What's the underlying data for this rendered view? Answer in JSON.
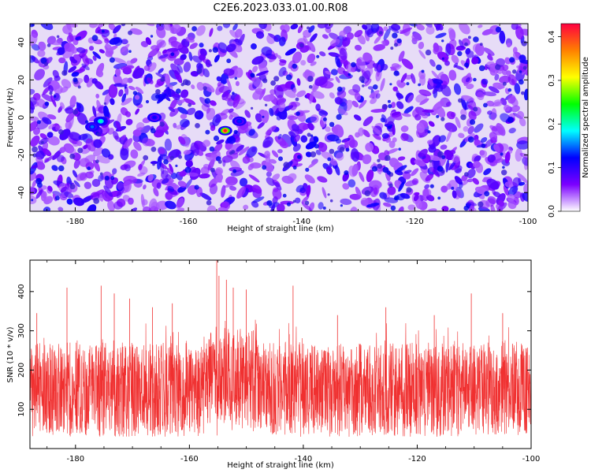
{
  "figure": {
    "title": "C2E6.2023.033.01.00.R08"
  },
  "chart_data": [
    {
      "type": "heatmap",
      "xlabel": "Height of straight line (km)",
      "ylabel": "Frequency (Hz)",
      "xlim": [
        -188,
        -100
      ],
      "ylim": [
        -50,
        50
      ],
      "xticks": [
        -180,
        -160,
        -140,
        -120,
        -100
      ],
      "yticks": [
        -40,
        -20,
        0,
        20,
        40
      ],
      "grid": false,
      "colorbar": {
        "label": "Normalized spectral amplitude",
        "range": [
          0,
          0.43
        ],
        "ticks": [
          "0.0",
          "0.1",
          "0.2",
          "0.3",
          "0.4"
        ],
        "colors": [
          "#ffffff",
          "#7b00ff",
          "#0000ff",
          "#00ffff",
          "#00ff00",
          "#ffff00",
          "#ff8000",
          "#ff0040"
        ]
      },
      "peaks": [
        {
          "x": -153.5,
          "y": -7,
          "value": 0.42
        },
        {
          "x": -177,
          "y": -5,
          "value": 0.15
        },
        {
          "x": -175.5,
          "y": -2,
          "value": 0.2
        },
        {
          "x": -166,
          "y": 0,
          "value": 0.12
        },
        {
          "x": -151,
          "y": -2,
          "value": 0.13
        }
      ]
    },
    {
      "type": "line",
      "color": "#f03030",
      "xlabel": "Height of straight line (km)",
      "ylabel": "SNR (10 * v/v)",
      "xlim": [
        -188,
        -100
      ],
      "ylim": [
        0,
        480
      ],
      "xticks": [
        -180,
        -160,
        -140,
        -120,
        -100
      ],
      "yticks": [
        100,
        200,
        300,
        400
      ],
      "grid": false,
      "baseline_range": [
        30,
        270
      ],
      "spikes": [
        {
          "x": -186.8,
          "y": 345
        },
        {
          "x": -181.5,
          "y": 410
        },
        {
          "x": -175.5,
          "y": 415
        },
        {
          "x": -173.2,
          "y": 395
        },
        {
          "x": -170.5,
          "y": 382
        },
        {
          "x": -166.5,
          "y": 360
        },
        {
          "x": -163.0,
          "y": 370
        },
        {
          "x": -155.2,
          "y": 480
        },
        {
          "x": -154.8,
          "y": 440
        },
        {
          "x": -153.5,
          "y": 430
        },
        {
          "x": -152.3,
          "y": 410
        },
        {
          "x": -150.0,
          "y": 405
        },
        {
          "x": -141.8,
          "y": 415
        },
        {
          "x": -134.0,
          "y": 340
        },
        {
          "x": -125.5,
          "y": 360
        },
        {
          "x": -117.0,
          "y": 340
        },
        {
          "x": -110.5,
          "y": 395
        },
        {
          "x": -105.0,
          "y": 345
        }
      ]
    }
  ]
}
